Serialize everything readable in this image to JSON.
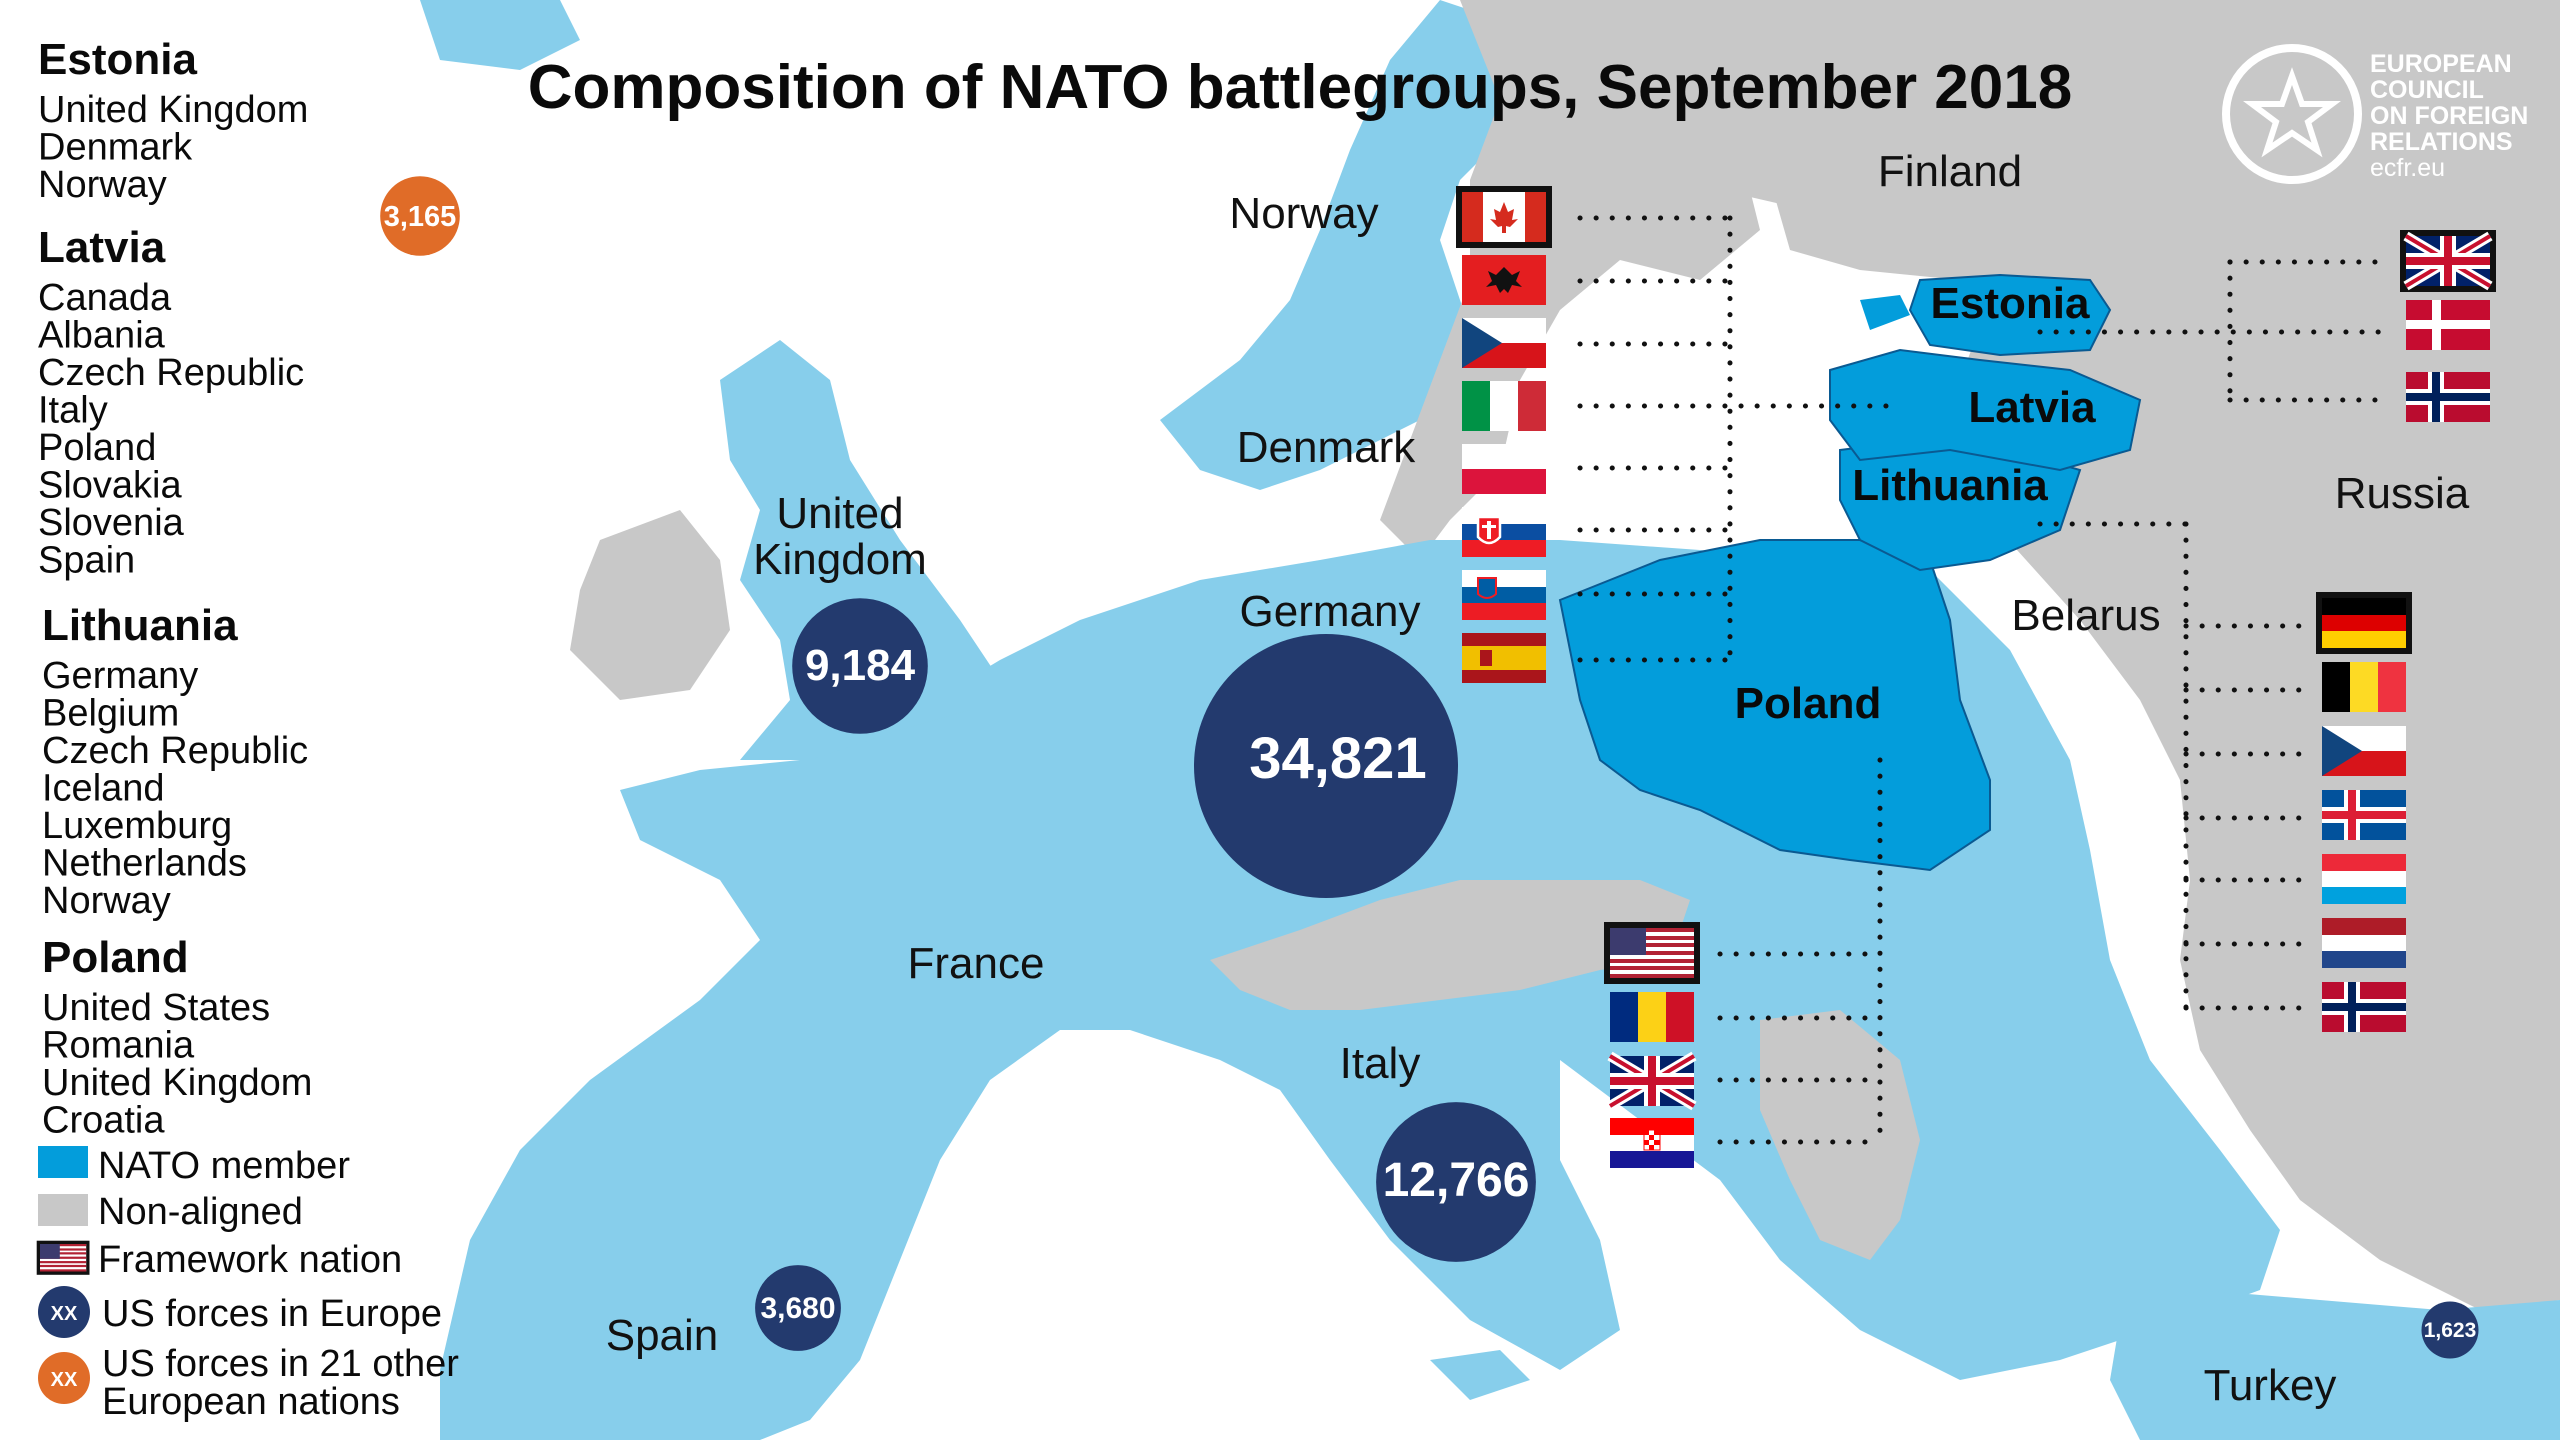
{
  "title": "Composition of NATO battlegroups, September 2018",
  "logo": {
    "lines": [
      "EUROPEAN",
      "COUNCIL",
      "ON FOREIGN",
      "RELATIONS"
    ],
    "site": "ecfr.eu"
  },
  "colors": {
    "nato_member": "#87ceeb",
    "battlegroup_host": "#039ddb",
    "non_aligned": "#c8c8c8",
    "us_forces": "#233a6e",
    "us_other": "#e06c28"
  },
  "battlegroups": [
    {
      "host": "Estonia",
      "members": [
        "United Kingdom",
        "Denmark",
        "Norway"
      ]
    },
    {
      "host": "Latvia",
      "members": [
        "Canada",
        "Albania",
        "Czech Republic",
        "Italy",
        "Poland",
        "Slovakia",
        "Slovenia",
        "Spain"
      ]
    },
    {
      "host": "Lithuania",
      "members": [
        "Germany",
        "Belgium",
        "Czech Republic",
        "Iceland",
        "Luxemburg",
        "Netherlands",
        "Norway"
      ]
    },
    {
      "host": "Poland",
      "members": [
        "United States",
        "Romania",
        "United Kingdom",
        "Croatia"
      ]
    }
  ],
  "map_labels": {
    "finland": "Finland",
    "norway": "Norway",
    "denmark": "Denmark",
    "uk_line1": "United",
    "uk_line2": "Kingdom",
    "germany": "Germany",
    "france": "France",
    "italy": "Italy",
    "spain": "Spain",
    "belarus": "Belarus",
    "russia": "Russia",
    "turkey": "Turkey",
    "estonia": "Estonia",
    "latvia": "Latvia",
    "lithuania": "Lithuania",
    "poland": "Poland"
  },
  "us_forces": [
    {
      "country": "Germany",
      "value": 34821,
      "label": "34,821"
    },
    {
      "country": "Italy",
      "value": 12766,
      "label": "12,766"
    },
    {
      "country": "United Kingdom",
      "value": 9184,
      "label": "9,184"
    },
    {
      "country": "Spain",
      "value": 3680,
      "label": "3,680"
    },
    {
      "country": "Turkey",
      "value": 1623,
      "label": "1,623"
    },
    {
      "country": "21 other European nations",
      "value": 3165,
      "label": "3,165"
    }
  ],
  "legend": {
    "nato_member": "NATO member",
    "non_aligned": "Non-aligned",
    "framework": "Framework nation",
    "us_forces_europe": "US forces in Europe",
    "us_forces_other_line1": "US forces in 21 other",
    "us_forces_other_line2": "European nations",
    "marker_text": "XX"
  },
  "flag_columns": {
    "latvia": {
      "host": "Latvia",
      "flags": [
        {
          "country": "Canada",
          "icon": "canada-flag-icon",
          "framework": true
        },
        {
          "country": "Albania",
          "icon": "albania-flag-icon",
          "framework": false
        },
        {
          "country": "Czech Republic",
          "icon": "czech-flag-icon",
          "framework": false
        },
        {
          "country": "Italy",
          "icon": "italy-flag-icon",
          "framework": false
        },
        {
          "country": "Poland",
          "icon": "poland-flag-icon",
          "framework": false
        },
        {
          "country": "Slovakia",
          "icon": "slovakia-flag-icon",
          "framework": false
        },
        {
          "country": "Slovenia",
          "icon": "slovenia-flag-icon",
          "framework": false
        },
        {
          "country": "Spain",
          "icon": "spain-flag-icon",
          "framework": false
        }
      ]
    },
    "estonia": {
      "host": "Estonia",
      "flags": [
        {
          "country": "United Kingdom",
          "icon": "uk-flag-icon",
          "framework": true
        },
        {
          "country": "Denmark",
          "icon": "denmark-flag-icon",
          "framework": false
        },
        {
          "country": "Norway",
          "icon": "norway-flag-icon",
          "framework": false
        }
      ]
    },
    "lithuania": {
      "host": "Lithuania",
      "flags": [
        {
          "country": "Germany",
          "icon": "germany-flag-icon",
          "framework": true
        },
        {
          "country": "Belgium",
          "icon": "belgium-flag-icon",
          "framework": false
        },
        {
          "country": "Czech Republic",
          "icon": "czech-flag-icon",
          "framework": false
        },
        {
          "country": "Iceland",
          "icon": "iceland-flag-icon",
          "framework": false
        },
        {
          "country": "Luxemburg",
          "icon": "luxembourg-flag-icon",
          "framework": false
        },
        {
          "country": "Netherlands",
          "icon": "netherlands-flag-icon",
          "framework": false
        },
        {
          "country": "Norway",
          "icon": "norway-flag-icon",
          "framework": false
        }
      ]
    },
    "poland": {
      "host": "Poland",
      "flags": [
        {
          "country": "United States",
          "icon": "us-flag-icon",
          "framework": true
        },
        {
          "country": "Romania",
          "icon": "romania-flag-icon",
          "framework": false
        },
        {
          "country": "United Kingdom",
          "icon": "uk-flag-icon",
          "framework": false
        },
        {
          "country": "Croatia",
          "icon": "croatia-flag-icon",
          "framework": false
        }
      ]
    }
  }
}
